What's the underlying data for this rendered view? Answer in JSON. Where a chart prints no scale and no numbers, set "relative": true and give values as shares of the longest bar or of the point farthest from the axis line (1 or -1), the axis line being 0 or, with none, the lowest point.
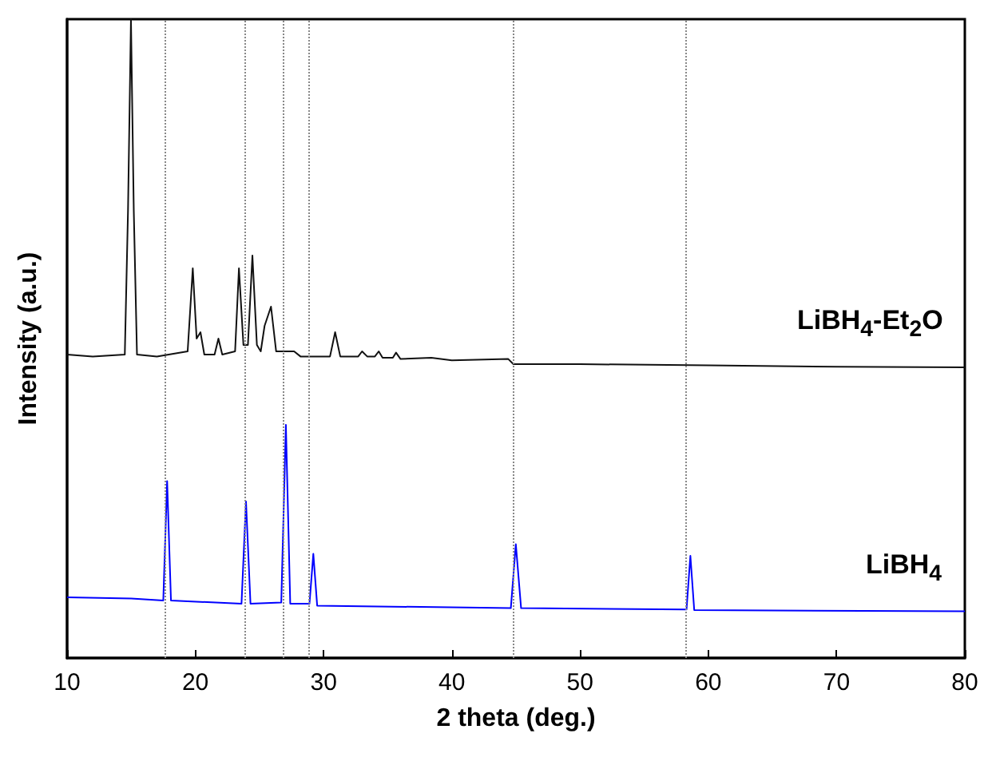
{
  "chart_data": {
    "type": "line",
    "relative": true,
    "xlabel": "2 theta (deg.)",
    "ylabel": "Intensity (a.u.)",
    "xlim": [
      10,
      80
    ],
    "xticks": [
      10,
      20,
      30,
      40,
      50,
      60,
      70,
      80
    ],
    "grid": false,
    "marker": "none",
    "line_style": "solid",
    "series": [
      {
        "name": "LiBH$_{4}$-Et$_{2}$O",
        "color": "#111111",
        "x": [
          10,
          12,
          14.5,
          14.75,
          14.98,
          15.2,
          15.45,
          17,
          19.4,
          19.8,
          20.1,
          20.4,
          20.7,
          21.5,
          21.8,
          22.1,
          23.1,
          23.4,
          23.75,
          24.1,
          24.45,
          24.8,
          25.1,
          25.4,
          25.9,
          26.3,
          27.7,
          28.2,
          30.5,
          30.9,
          31.3,
          32.7,
          33.0,
          33.4,
          34.0,
          34.3,
          34.6,
          35.4,
          35.65,
          36,
          38.4,
          40,
          44.4,
          44.8,
          50,
          60,
          70,
          80
        ],
        "values": [
          0.475,
          0.472,
          0.475,
          0.7,
          1.0,
          0.7,
          0.475,
          0.472,
          0.48,
          0.61,
          0.5,
          0.51,
          0.475,
          0.475,
          0.5,
          0.475,
          0.48,
          0.61,
          0.49,
          0.49,
          0.63,
          0.49,
          0.48,
          0.52,
          0.55,
          0.48,
          0.48,
          0.472,
          0.472,
          0.51,
          0.472,
          0.472,
          0.48,
          0.472,
          0.472,
          0.48,
          0.47,
          0.47,
          0.478,
          0.468,
          0.47,
          0.466,
          0.468,
          0.46,
          0.46,
          0.458,
          0.456,
          0.455
        ]
      },
      {
        "name": "LiBH$_{4}$",
        "color": "#0000ff",
        "x": [
          10,
          15,
          17.5,
          17.8,
          18.1,
          23.6,
          23.95,
          24.3,
          26.7,
          27.06,
          27.4,
          28.9,
          29.2,
          29.5,
          44.6,
          44.99,
          45.4,
          58.3,
          58.6,
          58.9,
          80
        ],
        "values": [
          0.095,
          0.093,
          0.09,
          0.277,
          0.09,
          0.085,
          0.245,
          0.085,
          0.087,
          0.365,
          0.085,
          0.085,
          0.163,
          0.082,
          0.078,
          0.178,
          0.078,
          0.076,
          0.16,
          0.075,
          0.073
        ]
      }
    ],
    "ref_lines": [
      {
        "axis": "x",
        "value": 17.6,
        "color": "#888888",
        "line_style": "dotted"
      },
      {
        "axis": "x",
        "value": 23.8,
        "color": "#888888",
        "line_style": "dotted"
      },
      {
        "axis": "x",
        "value": 26.9,
        "color": "#888888",
        "line_style": "dotted"
      },
      {
        "axis": "x",
        "value": 28.9,
        "color": "#888888",
        "line_style": "dotted"
      },
      {
        "axis": "x",
        "value": 44.8,
        "color": "#888888",
        "line_style": "dotted"
      },
      {
        "axis": "x",
        "value": 58.2,
        "color": "#888888",
        "line_style": "dotted"
      }
    ]
  }
}
